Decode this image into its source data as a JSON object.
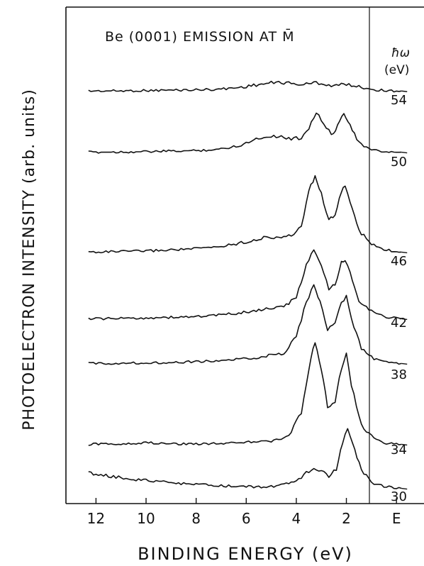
{
  "chart_data": {
    "type": "line",
    "title": "Be (0001) EMISSION AT M̄",
    "xlabel": "BINDING ENERGY (eV)",
    "ylabel": "PHOTOELECTRON INTENSITY (arb. units)",
    "xlim": [
      13.2,
      -1.1
    ],
    "x_reversed": true,
    "x_ticks": [
      {
        "value": 12,
        "label": "12"
      },
      {
        "value": 10,
        "label": "10"
      },
      {
        "value": 8,
        "label": "8"
      },
      {
        "value": 6,
        "label": "6"
      },
      {
        "value": 4,
        "label": "4"
      },
      {
        "value": 2,
        "label": "2"
      },
      {
        "value": 0,
        "label": "E"
      }
    ],
    "fermi_level_marker": 0,
    "series_label_header": [
      "ħω",
      "(eV)"
    ],
    "y_units": "arbitrary",
    "series": [
      {
        "name": "54",
        "points": [
          [
            12.3,
            1.0
          ],
          [
            11,
            1.2
          ],
          [
            10,
            1.8
          ],
          [
            9,
            2.5
          ],
          [
            8,
            3.2
          ],
          [
            7,
            4.5
          ],
          [
            6.2,
            8.0
          ],
          [
            5.6,
            12.5
          ],
          [
            5.0,
            16.0
          ],
          [
            4.6,
            17.5
          ],
          [
            4.2,
            15.0
          ],
          [
            3.8,
            13.0
          ],
          [
            3.5,
            14.5
          ],
          [
            3.2,
            17.0
          ],
          [
            2.9,
            14.0
          ],
          [
            2.6,
            11.0
          ],
          [
            2.3,
            12.0
          ],
          [
            2.0,
            14.0
          ],
          [
            1.7,
            11.0
          ],
          [
            1.3,
            7.0
          ],
          [
            0.8,
            3.0
          ],
          [
            0.3,
            1.5
          ],
          [
            -0.2,
            1.0
          ]
        ]
      },
      {
        "name": "50",
        "points": [
          [
            12.3,
            1.0
          ],
          [
            11,
            1.2
          ],
          [
            10,
            1.5
          ],
          [
            9,
            2.0
          ],
          [
            8,
            2.5
          ],
          [
            7,
            4.0
          ],
          [
            6.2,
            8.0
          ],
          [
            5.6,
            14.0
          ],
          [
            5.0,
            17.0
          ],
          [
            4.6,
            16.0
          ],
          [
            4.2,
            14.0
          ],
          [
            3.8,
            15.0
          ],
          [
            3.5,
            25.0
          ],
          [
            3.2,
            40.0
          ],
          [
            2.9,
            28.0
          ],
          [
            2.6,
            18.0
          ],
          [
            2.35,
            26.0
          ],
          [
            2.1,
            40.0
          ],
          [
            1.85,
            28.0
          ],
          [
            1.5,
            10.0
          ],
          [
            1.0,
            3.0
          ],
          [
            0.5,
            1.5
          ],
          [
            -0.2,
            1.0
          ]
        ]
      },
      {
        "name": "46",
        "points": [
          [
            12.3,
            1.0
          ],
          [
            11,
            1.5
          ],
          [
            10,
            2.0
          ],
          [
            9,
            3.0
          ],
          [
            8,
            4.0
          ],
          [
            7,
            6.0
          ],
          [
            6,
            10.0
          ],
          [
            5.2,
            14.0
          ],
          [
            4.8,
            14.0
          ],
          [
            4.2,
            15.0
          ],
          [
            3.8,
            24.0
          ],
          [
            3.5,
            55.0
          ],
          [
            3.25,
            68.0
          ],
          [
            3.0,
            52.0
          ],
          [
            2.7,
            30.0
          ],
          [
            2.45,
            32.0
          ],
          [
            2.2,
            55.0
          ],
          [
            2.05,
            60.0
          ],
          [
            1.85,
            45.0
          ],
          [
            1.5,
            20.0
          ],
          [
            1.0,
            8.0
          ],
          [
            0.5,
            3.0
          ],
          [
            -0.2,
            1.0
          ]
        ]
      },
      {
        "name": "42",
        "points": [
          [
            12.3,
            1.0
          ],
          [
            11,
            1.3
          ],
          [
            10,
            1.8
          ],
          [
            9,
            2.3
          ],
          [
            8,
            3.0
          ],
          [
            7,
            4.5
          ],
          [
            6,
            7.0
          ],
          [
            5.2,
            10.0
          ],
          [
            4.5,
            12.0
          ],
          [
            4.0,
            20.0
          ],
          [
            3.6,
            50.0
          ],
          [
            3.3,
            65.0
          ],
          [
            3.0,
            48.0
          ],
          [
            2.7,
            28.0
          ],
          [
            2.45,
            32.0
          ],
          [
            2.2,
            52.0
          ],
          [
            2.05,
            55.0
          ],
          [
            1.85,
            42.0
          ],
          [
            1.5,
            18.0
          ],
          [
            1.0,
            8.0
          ],
          [
            0.5,
            3.0
          ],
          [
            -0.2,
            1.0
          ]
        ]
      },
      {
        "name": "38",
        "points": [
          [
            12.3,
            1.0
          ],
          [
            11,
            1.2
          ],
          [
            10,
            1.5
          ],
          [
            9,
            2.0
          ],
          [
            8,
            2.5
          ],
          [
            7,
            3.5
          ],
          [
            6,
            5.0
          ],
          [
            5.2,
            7.5
          ],
          [
            4.5,
            10.0
          ],
          [
            4.0,
            25.0
          ],
          [
            3.6,
            55.0
          ],
          [
            3.3,
            70.0
          ],
          [
            3.05,
            55.0
          ],
          [
            2.75,
            30.0
          ],
          [
            2.45,
            38.0
          ],
          [
            2.2,
            55.0
          ],
          [
            2.0,
            60.0
          ],
          [
            1.8,
            40.0
          ],
          [
            1.4,
            14.0
          ],
          [
            0.9,
            5.0
          ],
          [
            0.4,
            2.0
          ],
          [
            -0.2,
            1.0
          ]
        ]
      },
      {
        "name": "34",
        "points": [
          [
            12.3,
            1.0
          ],
          [
            11,
            1.5
          ],
          [
            10,
            2.5
          ],
          [
            9,
            1.5
          ],
          [
            8,
            1.5
          ],
          [
            7,
            2.0
          ],
          [
            6,
            3.0
          ],
          [
            5.0,
            4.0
          ],
          [
            4.3,
            8.0
          ],
          [
            3.8,
            30.0
          ],
          [
            3.5,
            70.0
          ],
          [
            3.25,
            95.0
          ],
          [
            3.0,
            70.0
          ],
          [
            2.75,
            35.0
          ],
          [
            2.45,
            40.0
          ],
          [
            2.2,
            70.0
          ],
          [
            2.0,
            85.0
          ],
          [
            1.8,
            55.0
          ],
          [
            1.4,
            18.0
          ],
          [
            0.9,
            6.0
          ],
          [
            0.4,
            2.0
          ],
          [
            -0.2,
            1.0
          ]
        ]
      },
      {
        "name": "30",
        "points": [
          [
            12.3,
            16.0
          ],
          [
            11.5,
            13.0
          ],
          [
            10.5,
            10.0
          ],
          [
            9.5,
            7.5
          ],
          [
            8.5,
            5.5
          ],
          [
            7.5,
            4.0
          ],
          [
            6.5,
            3.0
          ],
          [
            5.5,
            2.5
          ],
          [
            4.8,
            3.0
          ],
          [
            4.2,
            6.0
          ],
          [
            3.8,
            12.0
          ],
          [
            3.3,
            22.0
          ],
          [
            3.0,
            18.0
          ],
          [
            2.7,
            12.0
          ],
          [
            2.4,
            20.0
          ],
          [
            2.15,
            45.0
          ],
          [
            1.95,
            60.0
          ],
          [
            1.75,
            45.0
          ],
          [
            1.4,
            18.0
          ],
          [
            0.9,
            6.0
          ],
          [
            0.4,
            2.5
          ],
          [
            -0.2,
            1.0
          ]
        ]
      }
    ]
  }
}
